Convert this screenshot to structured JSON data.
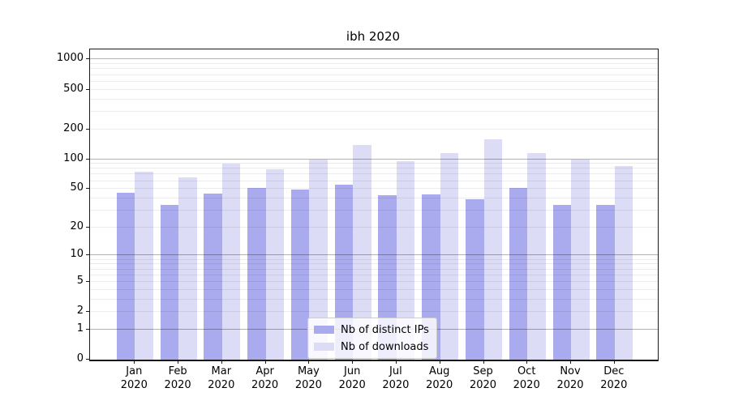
{
  "chart_data": {
    "type": "bar",
    "title": "ibh 2020",
    "x_axis": {
      "categories": [
        "Jan",
        "Feb",
        "Mar",
        "Apr",
        "May",
        "Jun",
        "Jul",
        "Aug",
        "Sep",
        "Oct",
        "Nov",
        "Dec"
      ],
      "year": "2020"
    },
    "y_axis": {
      "scale": "log1p",
      "ticks": [
        0,
        1,
        2,
        5,
        10,
        20,
        50,
        100,
        200,
        500,
        1000
      ],
      "range": [
        0,
        1270
      ],
      "gridlines_minor": [
        2,
        3,
        4,
        5,
        6,
        7,
        8,
        9,
        20,
        30,
        40,
        50,
        60,
        70,
        80,
        90,
        200,
        300,
        400,
        500,
        600,
        700,
        800,
        900
      ],
      "gridlines_major": [
        1,
        10,
        100,
        1000
      ],
      "grid": true
    },
    "series": [
      {
        "name": "Nb of distinct IPs",
        "color": "#aaaaee",
        "values": [
          46,
          34,
          45,
          51,
          49,
          55,
          43,
          44,
          39,
          51,
          34,
          34
        ]
      },
      {
        "name": "Nb of downloads",
        "color": "#dcdcf7",
        "values": [
          74,
          65,
          91,
          79,
          100,
          140,
          95,
          115,
          160,
          115,
          99,
          86
        ]
      }
    ],
    "legend": {
      "position": "lower center"
    }
  }
}
